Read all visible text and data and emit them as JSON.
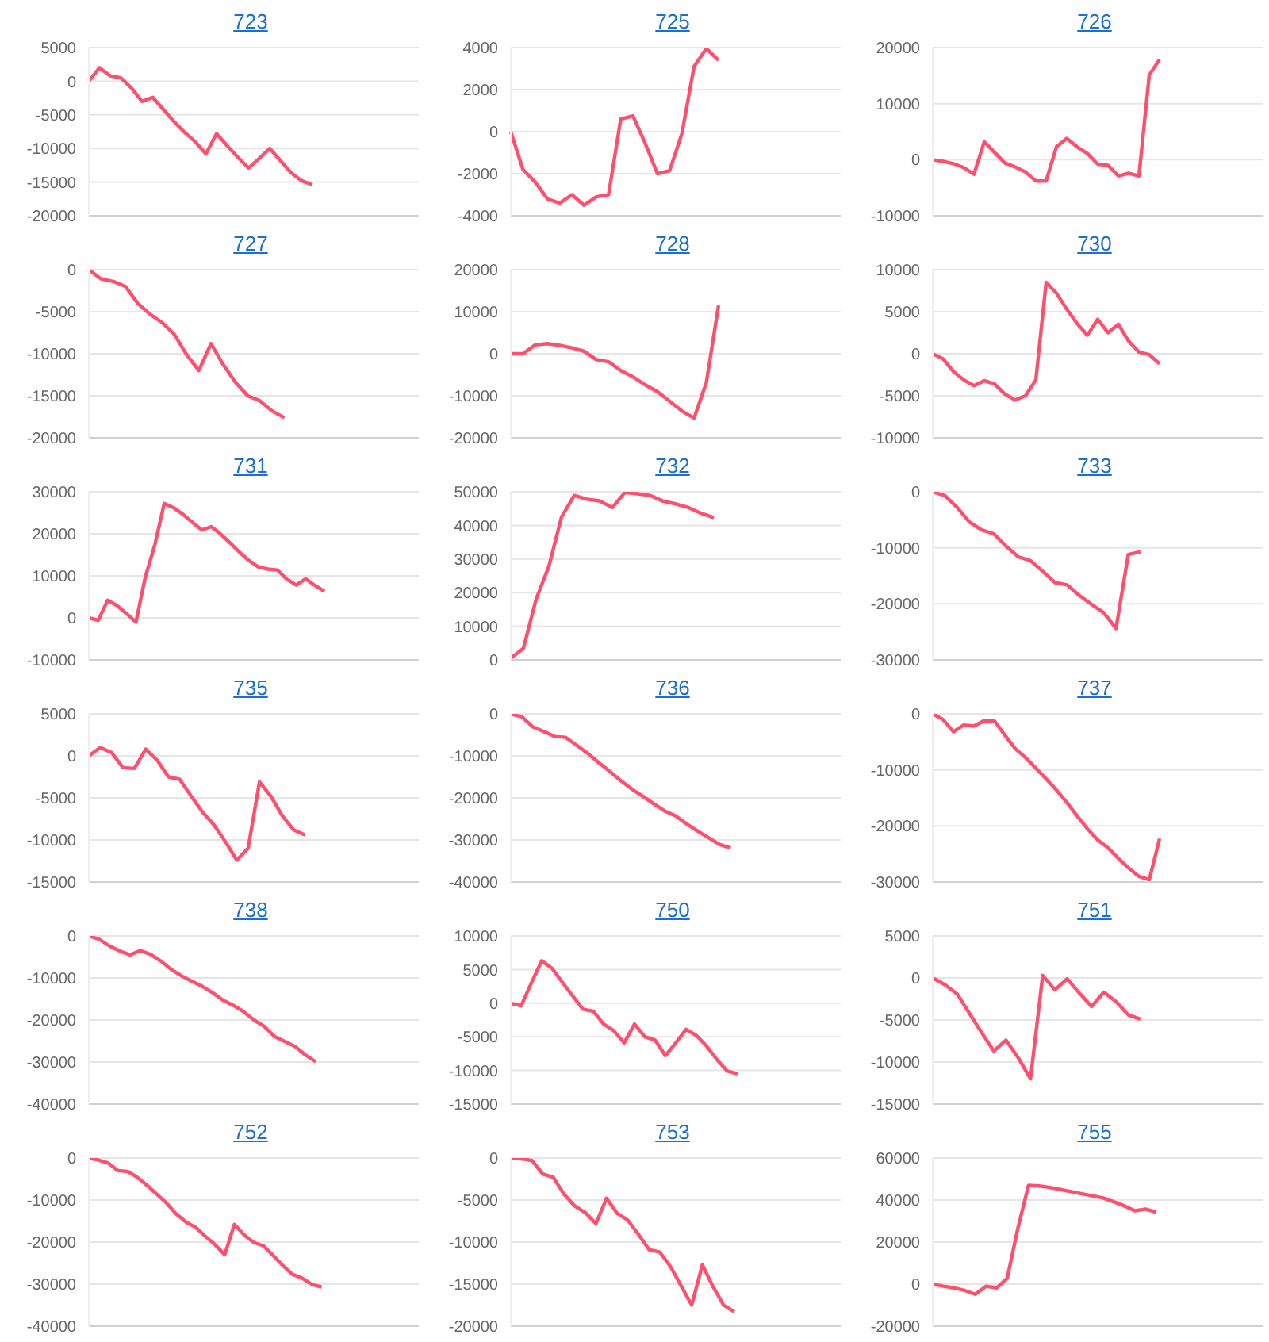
{
  "chart_data": [
    {
      "type": "line",
      "title": "723",
      "color": "#ff4f6d",
      "grid": "y",
      "tick_labels": "y",
      "ylim": [
        -20000,
        5000
      ],
      "yticks": [
        -20000,
        -15000,
        -10000,
        -5000,
        0,
        5000
      ],
      "categories": [
        null,
        null,
        null,
        null,
        null,
        null,
        null,
        null,
        null,
        null,
        null,
        null,
        null,
        null,
        null,
        null,
        null,
        null,
        null,
        null,
        null,
        null,
        null,
        null,
        null,
        null,
        null,
        null,
        null,
        null,
        null,
        null
      ],
      "values": [
        0,
        2000,
        800,
        500,
        -1000,
        -3000,
        -2400,
        -4200,
        -6000,
        -7600,
        -9000,
        -10800,
        -7800,
        -9600,
        -11300,
        -12900,
        -11500,
        -10000,
        -11800,
        -13600,
        -14800,
        -15400,
        null,
        null,
        null,
        null,
        null,
        null,
        null,
        null,
        null,
        null
      ]
    },
    {
      "type": "line",
      "title": "725",
      "color": "#ff4f6d",
      "grid": "y",
      "tick_labels": "y",
      "ylim": [
        -4000,
        4000
      ],
      "yticks": [
        -4000,
        -2000,
        0,
        2000,
        4000
      ],
      "categories": [
        null,
        null,
        null,
        null,
        null,
        null,
        null,
        null,
        null,
        null,
        null,
        null,
        null,
        null,
        null,
        null,
        null,
        null,
        null,
        null,
        null,
        null,
        null,
        null,
        null,
        null,
        null,
        null
      ],
      "values": [
        0,
        -1800,
        -2400,
        -3200,
        -3400,
        -3000,
        -3500,
        -3100,
        -3000,
        600,
        750,
        -550,
        -2000,
        -1850,
        -100,
        3100,
        3950,
        3400,
        null,
        null,
        null,
        null,
        null,
        null,
        null,
        null,
        null,
        null
      ]
    },
    {
      "type": "line",
      "title": "726",
      "color": "#ff4f6d",
      "grid": "y",
      "tick_labels": "y",
      "ylim": [
        -10000,
        20000
      ],
      "yticks": [
        -10000,
        0,
        10000,
        20000
      ],
      "categories": [
        null,
        null,
        null,
        null,
        null,
        null,
        null,
        null,
        null,
        null,
        null,
        null,
        null,
        null,
        null,
        null,
        null,
        null,
        null,
        null,
        null,
        null,
        null,
        null,
        null,
        null,
        null,
        null,
        null,
        null,
        null,
        null,
        null
      ],
      "values": [
        0,
        -300,
        -700,
        -1400,
        -2600,
        3200,
        1300,
        -600,
        -1300,
        -2200,
        -3800,
        -3800,
        2300,
        3800,
        2300,
        1100,
        -800,
        -1000,
        -2900,
        -2400,
        -2900,
        15100,
        17900,
        null,
        null,
        null,
        null,
        null,
        null,
        null,
        null,
        null,
        null
      ]
    },
    {
      "type": "line",
      "title": "727",
      "color": "#ff4f6d",
      "grid": "y",
      "tick_labels": "y",
      "ylim": [
        -20000,
        0
      ],
      "yticks": [
        -20000,
        -15000,
        -10000,
        -5000,
        0
      ],
      "categories": [
        null,
        null,
        null,
        null,
        null,
        null,
        null,
        null,
        null,
        null,
        null,
        null,
        null,
        null,
        null,
        null,
        null,
        null,
        null,
        null,
        null,
        null,
        null,
        null,
        null,
        null,
        null,
        null
      ],
      "values": [
        0,
        -1100,
        -1400,
        -2000,
        -4000,
        -5300,
        -6300,
        -7700,
        -10100,
        -12000,
        -8800,
        -11300,
        -13400,
        -15000,
        -15600,
        -16800,
        -17600,
        null,
        null,
        null,
        null,
        null,
        null,
        null,
        null,
        null,
        null,
        null
      ]
    },
    {
      "type": "line",
      "title": "728",
      "color": "#ff4f6d",
      "grid": "y",
      "tick_labels": "y",
      "ylim": [
        -20000,
        20000
      ],
      "yticks": [
        -20000,
        -10000,
        0,
        10000,
        20000
      ],
      "categories": [
        null,
        null,
        null,
        null,
        null,
        null,
        null,
        null,
        null,
        null,
        null,
        null,
        null,
        null,
        null,
        null,
        null,
        null,
        null,
        null,
        null,
        null,
        null,
        null,
        null,
        null,
        null,
        null
      ],
      "values": [
        0,
        0,
        2100,
        2400,
        2000,
        1400,
        600,
        -1400,
        -1900,
        -4000,
        -5500,
        -7400,
        -9000,
        -11300,
        -13600,
        -15300,
        -6900,
        11500,
        null,
        null,
        null,
        null,
        null,
        null,
        null,
        null,
        null,
        null
      ]
    },
    {
      "type": "line",
      "title": "730",
      "color": "#ff4f6d",
      "grid": "y",
      "tick_labels": "y",
      "ylim": [
        -10000,
        10000
      ],
      "yticks": [
        -10000,
        -5000,
        0,
        5000,
        10000
      ],
      "categories": [
        null,
        null,
        null,
        null,
        null,
        null,
        null,
        null,
        null,
        null,
        null,
        null,
        null,
        null,
        null,
        null,
        null,
        null,
        null,
        null,
        null,
        null,
        null,
        null,
        null,
        null,
        null,
        null,
        null,
        null,
        null,
        null,
        null
      ],
      "values": [
        0,
        -600,
        -2100,
        -3100,
        -3800,
        -3200,
        -3600,
        -4800,
        -5500,
        -5000,
        -3100,
        8500,
        7200,
        5300,
        3600,
        2200,
        4100,
        2500,
        3500,
        1500,
        200,
        -100,
        -1200,
        null,
        null,
        null,
        null,
        null,
        null,
        null,
        null,
        null,
        null
      ]
    },
    {
      "type": "line",
      "title": "731",
      "color": "#ff4f6d",
      "grid": "y",
      "tick_labels": "y",
      "ylim": [
        -10000,
        30000
      ],
      "yticks": [
        -10000,
        0,
        10000,
        20000,
        30000
      ],
      "categories": [
        null,
        null,
        null,
        null,
        null,
        null,
        null,
        null,
        null,
        null,
        null,
        null,
        null,
        null,
        null,
        null,
        null,
        null,
        null,
        null,
        null,
        null,
        null,
        null,
        null,
        null,
        null,
        null,
        null,
        null,
        null,
        null,
        null,
        null,
        null,
        null
      ],
      "values": [
        0,
        -600,
        4200,
        2900,
        1000,
        -1000,
        9800,
        17400,
        27200,
        26200,
        24600,
        22700,
        20900,
        21700,
        19900,
        17800,
        15600,
        13600,
        12100,
        11600,
        11400,
        9200,
        7800,
        9300,
        7700,
        6300,
        null,
        null,
        null,
        null,
        null,
        null,
        null,
        null,
        null,
        null
      ]
    },
    {
      "type": "line",
      "title": "732",
      "color": "#ff4f6d",
      "grid": "y",
      "tick_labels": "y",
      "ylim": [
        0,
        50000
      ],
      "yticks": [
        0,
        10000,
        20000,
        30000,
        40000,
        50000
      ],
      "categories": [
        null,
        null,
        null,
        null,
        null,
        null,
        null,
        null,
        null,
        null,
        null,
        null,
        null,
        null,
        null,
        null,
        null,
        null,
        null,
        null,
        null,
        null,
        null,
        null,
        null,
        null,
        null
      ],
      "values": [
        500,
        3500,
        18100,
        27800,
        42500,
        48900,
        47800,
        47300,
        45300,
        49800,
        49400,
        48900,
        47200,
        46400,
        45300,
        43600,
        42300,
        null,
        null,
        null,
        null,
        null,
        null,
        null,
        null,
        null,
        null
      ]
    },
    {
      "type": "line",
      "title": "733",
      "color": "#ff4f6d",
      "grid": "y",
      "tick_labels": "y",
      "ylim": [
        -30000,
        0
      ],
      "yticks": [
        -30000,
        -20000,
        -10000,
        0
      ],
      "categories": [
        null,
        null,
        null,
        null,
        null,
        null,
        null,
        null,
        null,
        null,
        null,
        null,
        null,
        null,
        null,
        null,
        null,
        null,
        null,
        null,
        null,
        null,
        null,
        null,
        null,
        null,
        null,
        null
      ],
      "values": [
        0,
        -700,
        -2800,
        -5400,
        -6800,
        -7500,
        -9700,
        -11600,
        -12300,
        -14200,
        -16200,
        -16600,
        -18500,
        -20100,
        -21600,
        -24400,
        -11200,
        -10700,
        null,
        null,
        null,
        null,
        null,
        null,
        null,
        null,
        null,
        null
      ]
    },
    {
      "type": "line",
      "title": "735",
      "color": "#ff4f6d",
      "grid": "y",
      "tick_labels": "y",
      "ylim": [
        -15000,
        5000
      ],
      "yticks": [
        -15000,
        -10000,
        -5000,
        0,
        5000
      ],
      "categories": [
        null,
        null,
        null,
        null,
        null,
        null,
        null,
        null,
        null,
        null,
        null,
        null,
        null,
        null,
        null,
        null,
        null,
        null,
        null,
        null,
        null,
        null,
        null,
        null,
        null,
        null,
        null,
        null,
        null,
        null
      ],
      "values": [
        0,
        1000,
        400,
        -1400,
        -1500,
        800,
        -500,
        -2500,
        -2800,
        -4800,
        -6700,
        -8200,
        -10200,
        -12400,
        -11000,
        -3100,
        -4800,
        -7100,
        -8800,
        -9400,
        null,
        null,
        null,
        null,
        null,
        null,
        null,
        null,
        null,
        null
      ]
    },
    {
      "type": "line",
      "title": "736",
      "color": "#ff4f6d",
      "grid": "y",
      "tick_labels": "y",
      "ylim": [
        -40000,
        0
      ],
      "yticks": [
        -40000,
        -30000,
        -20000,
        -10000,
        0
      ],
      "categories": [
        null,
        null,
        null,
        null,
        null,
        null,
        null,
        null,
        null,
        null,
        null,
        null,
        null,
        null,
        null,
        null,
        null,
        null,
        null,
        null,
        null,
        null,
        null,
        null,
        null,
        null,
        null,
        null,
        null,
        null,
        null
      ],
      "values": [
        0,
        -700,
        -3100,
        -4200,
        -5400,
        -5600,
        -7500,
        -9400,
        -11600,
        -13700,
        -15900,
        -17900,
        -19600,
        -21400,
        -23100,
        -24300,
        -26200,
        -27900,
        -29500,
        -31100,
        -31900,
        null,
        null,
        null,
        null,
        null,
        null,
        null,
        null,
        null,
        null
      ]
    },
    {
      "type": "line",
      "title": "737",
      "color": "#ff4f6d",
      "grid": "y",
      "tick_labels": "y",
      "ylim": [
        -30000,
        0
      ],
      "yticks": [
        -30000,
        -20000,
        -10000,
        0
      ],
      "categories": [
        null,
        null,
        null,
        null,
        null,
        null,
        null,
        null,
        null,
        null,
        null,
        null,
        null,
        null,
        null,
        null,
        null,
        null,
        null,
        null,
        null,
        null,
        null,
        null,
        null,
        null,
        null,
        null,
        null,
        null,
        null,
        null,
        null
      ],
      "values": [
        0,
        -1000,
        -3200,
        -2000,
        -2200,
        -1200,
        -1300,
        -3800,
        -6200,
        -7800,
        -9700,
        -11600,
        -13600,
        -15800,
        -18200,
        -20500,
        -22500,
        -23900,
        -25800,
        -27500,
        -29000,
        -29600,
        -22300,
        null,
        null,
        null,
        null,
        null,
        null,
        null,
        null,
        null,
        null
      ]
    },
    {
      "type": "line",
      "title": "738",
      "color": "#ff4f6d",
      "grid": "y",
      "tick_labels": "y",
      "ylim": [
        -40000,
        0
      ],
      "yticks": [
        -40000,
        -30000,
        -20000,
        -10000,
        0
      ],
      "categories": [
        null,
        null,
        null,
        null,
        null,
        null,
        null,
        null,
        null,
        null,
        null,
        null,
        null,
        null,
        null,
        null,
        null,
        null,
        null,
        null,
        null,
        null,
        null,
        null,
        null,
        null,
        null,
        null,
        null,
        null,
        null,
        null,
        null
      ],
      "values": [
        0,
        -800,
        -2400,
        -3600,
        -4500,
        -3500,
        -4400,
        -6000,
        -8000,
        -9500,
        -10800,
        -12000,
        -13500,
        -15300,
        -16500,
        -18000,
        -20000,
        -21500,
        -23900,
        -25100,
        -26300,
        -28300,
        -29900,
        null,
        null,
        null,
        null,
        null,
        null,
        null,
        null,
        null,
        null
      ]
    },
    {
      "type": "line",
      "title": "750",
      "color": "#ff4f6d",
      "grid": "y",
      "tick_labels": "y",
      "ylim": [
        -15000,
        10000
      ],
      "yticks": [
        -15000,
        -10000,
        -5000,
        0,
        5000,
        10000
      ],
      "categories": [
        null,
        null,
        null,
        null,
        null,
        null,
        null,
        null,
        null,
        null,
        null,
        null,
        null,
        null,
        null,
        null,
        null,
        null,
        null,
        null,
        null,
        null,
        null,
        null,
        null,
        null,
        null,
        null,
        null,
        null,
        null,
        null,
        null
      ],
      "values": [
        0,
        -400,
        3000,
        6300,
        5200,
        3100,
        1100,
        -900,
        -1200,
        -3100,
        -4100,
        -5900,
        -3100,
        -5000,
        -5500,
        -7800,
        -5900,
        -3900,
        -4800,
        -6400,
        -8400,
        -10100,
        -10500,
        null,
        null,
        null,
        null,
        null,
        null,
        null,
        null,
        null,
        null
      ]
    },
    {
      "type": "line",
      "title": "751",
      "color": "#ff4f6d",
      "grid": "y",
      "tick_labels": "y",
      "ylim": [
        -15000,
        5000
      ],
      "yticks": [
        -15000,
        -10000,
        -5000,
        0,
        5000
      ],
      "categories": [
        null,
        null,
        null,
        null,
        null,
        null,
        null,
        null,
        null,
        null,
        null,
        null,
        null,
        null,
        null,
        null,
        null,
        null,
        null,
        null,
        null,
        null,
        null,
        null,
        null,
        null,
        null,
        null
      ],
      "values": [
        0,
        -800,
        -1900,
        -4200,
        -6500,
        -8700,
        -7400,
        -9500,
        -12000,
        300,
        -1400,
        -100,
        -1800,
        -3400,
        -1700,
        -2800,
        -4400,
        -4900,
        null,
        null,
        null,
        null,
        null,
        null,
        null,
        null,
        null,
        null
      ]
    },
    {
      "type": "line",
      "title": "752",
      "color": "#ff4f6d",
      "grid": "y",
      "tick_labels": "y",
      "ylim": [
        -40000,
        0
      ],
      "yticks": [
        -40000,
        -30000,
        -20000,
        -10000,
        0
      ],
      "categories": [
        null,
        null,
        null,
        null,
        null,
        null,
        null,
        null,
        null,
        null,
        null,
        null,
        null,
        null,
        null,
        null,
        null,
        null,
        null,
        null,
        null,
        null,
        null,
        null,
        null,
        null,
        null,
        null,
        null,
        null,
        null,
        null,
        null,
        null,
        null
      ],
      "values": [
        0,
        -500,
        -1200,
        -3000,
        -3200,
        -4600,
        -6500,
        -8600,
        -10700,
        -13300,
        -15200,
        -16500,
        -18600,
        -20600,
        -23000,
        -15800,
        -18300,
        -20100,
        -20900,
        -23200,
        -25600,
        -27700,
        -28600,
        -30100,
        -30700,
        null,
        null,
        null,
        null,
        null,
        null,
        null,
        null,
        null,
        null
      ]
    },
    {
      "type": "line",
      "title": "753",
      "color": "#ff4f6d",
      "grid": "y",
      "tick_labels": "y",
      "ylim": [
        -20000,
        0
      ],
      "yticks": [
        -20000,
        -15000,
        -10000,
        -5000,
        0
      ],
      "categories": [
        null,
        null,
        null,
        null,
        null,
        null,
        null,
        null,
        null,
        null,
        null,
        null,
        null,
        null,
        null,
        null,
        null,
        null,
        null,
        null,
        null,
        null,
        null,
        null,
        null,
        null,
        null,
        null,
        null,
        null,
        null,
        null
      ],
      "values": [
        0,
        -100,
        -300,
        -1900,
        -2300,
        -4300,
        -5700,
        -6500,
        -7800,
        -4800,
        -6600,
        -7400,
        -9100,
        -10900,
        -11200,
        -12900,
        -15200,
        -17500,
        -12700,
        -15300,
        -17500,
        -18300,
        null,
        null,
        null,
        null,
        null,
        null,
        null,
        null,
        null,
        null
      ]
    },
    {
      "type": "line",
      "title": "755",
      "color": "#ff4f6d",
      "grid": "y",
      "tick_labels": "y",
      "ylim": [
        -20000,
        60000
      ],
      "yticks": [
        -20000,
        0,
        20000,
        40000,
        60000
      ],
      "categories": [
        null,
        null,
        null,
        null,
        null,
        null,
        null,
        null,
        null,
        null,
        null,
        null,
        null,
        null,
        null,
        null,
        null,
        null,
        null,
        null,
        null,
        null,
        null,
        null,
        null,
        null,
        null,
        null,
        null,
        null,
        null,
        null
      ],
      "values": [
        0,
        -1000,
        -1800,
        -3000,
        -4800,
        -1000,
        -1800,
        2800,
        26600,
        47000,
        46700,
        46000,
        45000,
        44000,
        43000,
        42000,
        41000,
        39200,
        37200,
        34900,
        35700,
        34200,
        null,
        null,
        null,
        null,
        null,
        null,
        null,
        null,
        null,
        null
      ]
    }
  ]
}
